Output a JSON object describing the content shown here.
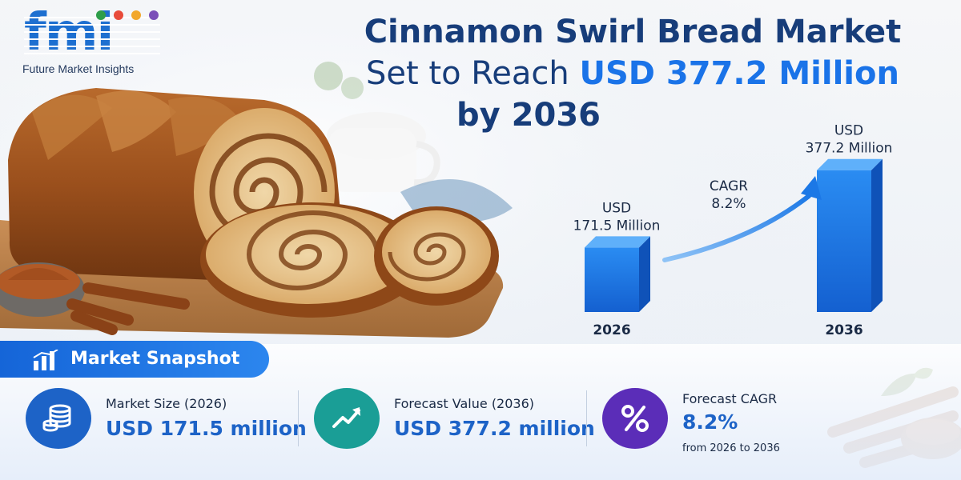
{
  "logo": {
    "wordmark": "fmi",
    "tagline": "Future Market Insights"
  },
  "headline": {
    "line1": "Cinnamon Swirl Bread Market",
    "line2_prefix": "Set to Reach ",
    "line2_highlight": "USD 377.2 Million",
    "line3": "by 2036"
  },
  "chart_data": {
    "type": "bar",
    "categories": [
      "2026",
      "2036"
    ],
    "values": [
      171.5,
      377.2
    ],
    "value_labels": [
      [
        "USD",
        "171.5 Million"
      ],
      [
        "USD",
        "377.2 Million"
      ]
    ],
    "annotation": {
      "label": "CAGR",
      "value": "8.2%"
    },
    "ylim": [
      0,
      400
    ],
    "title": "",
    "xlabel": "",
    "ylabel": "",
    "grid": false
  },
  "snapshot": {
    "heading": "Market Snapshot",
    "items": [
      {
        "title": "Market Size (2026)",
        "value": "USD 171.5 million",
        "sub": "",
        "icon": "coin-stack-icon",
        "color": "#1d63c7"
      },
      {
        "title": "Forecast Value (2036)",
        "value": "USD 377.2 million",
        "sub": "",
        "icon": "trend-up-icon",
        "color": "#1a9e96"
      },
      {
        "title": "Forecast CAGR",
        "value": "8.2%",
        "sub": "from 2026 to 2036",
        "icon": "percent-icon",
        "color": "#5b2db8"
      }
    ]
  },
  "colors": {
    "brand_blue": "#1a73e8",
    "navy": "#173d7a",
    "bar_front": "#1b76e6",
    "bar_side": "#0f52b8"
  }
}
